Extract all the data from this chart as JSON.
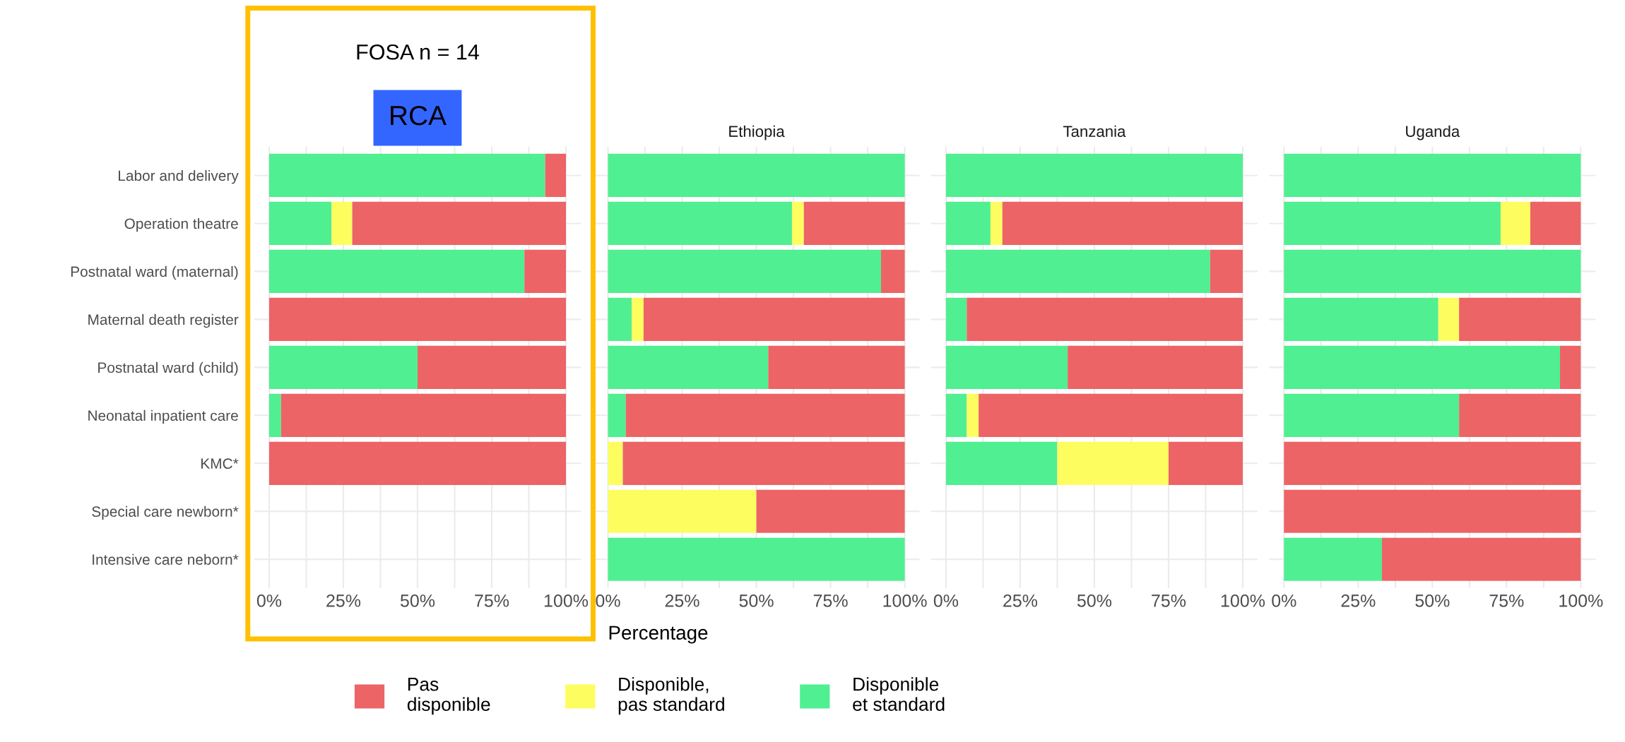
{
  "chart_data": [
    {
      "type": "bar",
      "orientation": "horizontal",
      "stacked": true,
      "title": "RCA",
      "subtitle": "FOSA n = 14",
      "legend": "bottom",
      "grid": true,
      "categories": [
        "Labor and delivery",
        "Operation theatre",
        "Postnatal ward (maternal)",
        "Maternal death register",
        "Postnatal ward (child)",
        "Neonatal inpatient care",
        "KMC*",
        "Special care newborn*",
        "Intensive care neborn*"
      ],
      "xlim": [
        -5,
        105
      ],
      "xticks": [
        {
          "value": 0,
          "label": "0%"
        },
        {
          "value": 12.5,
          "label": null
        },
        {
          "value": 25,
          "label": "25%"
        },
        {
          "value": 37.5,
          "label": null
        },
        {
          "value": 50,
          "label": "50%"
        },
        {
          "value": 62.5,
          "label": null
        },
        {
          "value": 75,
          "label": "75%"
        },
        {
          "value": 87.5,
          "label": null
        },
        {
          "value": 100,
          "label": "100%"
        }
      ],
      "series": [
        {
          "name": "Disponible\net standard",
          "color": "#50ef92",
          "values": [
            93,
            21,
            86,
            0,
            50,
            4,
            0,
            null,
            null
          ]
        },
        {
          "name": "Disponible,\npas standard",
          "color": "#fdfd60",
          "values": [
            0,
            7,
            0,
            0,
            0,
            0,
            0,
            null,
            null
          ]
        },
        {
          "name": "Pas\ndisponible",
          "color": "#ec6466",
          "values": [
            7,
            72,
            14,
            100,
            50,
            96,
            100,
            null,
            null
          ]
        }
      ]
    },
    {
      "type": "bar",
      "orientation": "horizontal",
      "stacked": true,
      "title": "Ethiopia",
      "xlabel": "Percentage",
      "grid": true,
      "tick_labels": "x",
      "xlim": [
        -5,
        105
      ],
      "xticks": [
        {
          "value": 0,
          "label": "0%"
        },
        {
          "value": 12.5,
          "label": null
        },
        {
          "value": 25,
          "label": "25%"
        },
        {
          "value": 37.5,
          "label": null
        },
        {
          "value": 50,
          "label": "50%"
        },
        {
          "value": 62.5,
          "label": null
        },
        {
          "value": 75,
          "label": "75%"
        },
        {
          "value": 87.5,
          "label": null
        },
        {
          "value": 100,
          "label": "100%"
        }
      ],
      "series": [
        {
          "color": "#50ef92",
          "values": [
            100,
            62,
            92,
            8,
            54,
            6,
            0,
            0,
            100
          ]
        },
        {
          "color": "#fdfd60",
          "values": [
            0,
            4,
            0,
            4,
            0,
            0,
            5,
            50,
            0
          ]
        },
        {
          "color": "#ec6466",
          "values": [
            0,
            34,
            8,
            88,
            46,
            94,
            95,
            50,
            0
          ]
        }
      ]
    },
    {
      "type": "bar",
      "orientation": "horizontal",
      "stacked": true,
      "title": "Tanzania",
      "grid": true,
      "tick_labels": "x",
      "xlim": [
        -5,
        105
      ],
      "xticks": [
        {
          "value": 0,
          "label": "0%"
        },
        {
          "value": 12.5,
          "label": null
        },
        {
          "value": 25,
          "label": "25%"
        },
        {
          "value": 37.5,
          "label": null
        },
        {
          "value": 50,
          "label": "50%"
        },
        {
          "value": 62.5,
          "label": null
        },
        {
          "value": 75,
          "label": "75%"
        },
        {
          "value": 87.5,
          "label": null
        },
        {
          "value": 100,
          "label": "100%"
        }
      ],
      "series": [
        {
          "color": "#50ef92",
          "values": [
            100,
            15,
            89,
            7,
            41,
            7,
            37.5,
            null,
            null
          ]
        },
        {
          "color": "#fdfd60",
          "values": [
            0,
            4,
            0,
            0,
            0,
            4,
            37.5,
            null,
            null
          ]
        },
        {
          "color": "#ec6466",
          "values": [
            0,
            81,
            11,
            93,
            59,
            89,
            25,
            null,
            null
          ]
        }
      ]
    },
    {
      "type": "bar",
      "orientation": "horizontal",
      "stacked": true,
      "title": "Uganda",
      "grid": true,
      "tick_labels": "x",
      "xlim": [
        -5,
        105
      ],
      "xticks": [
        {
          "value": 0,
          "label": "0%"
        },
        {
          "value": 12.5,
          "label": null
        },
        {
          "value": 25,
          "label": "25%"
        },
        {
          "value": 37.5,
          "label": null
        },
        {
          "value": 50,
          "label": "50%"
        },
        {
          "value": 62.5,
          "label": null
        },
        {
          "value": 75,
          "label": "75%"
        },
        {
          "value": 87.5,
          "label": null
        },
        {
          "value": 100,
          "label": "100%"
        }
      ],
      "series": [
        {
          "color": "#50ef92",
          "values": [
            100,
            73,
            100,
            52,
            93,
            59,
            0,
            0,
            33
          ]
        },
        {
          "color": "#fdfd60",
          "values": [
            0,
            10,
            0,
            7,
            0,
            0,
            0,
            0,
            0
          ]
        },
        {
          "color": "#ec6466",
          "values": [
            0,
            17,
            0,
            41,
            7,
            41,
            100,
            100,
            67
          ]
        }
      ]
    }
  ]
}
